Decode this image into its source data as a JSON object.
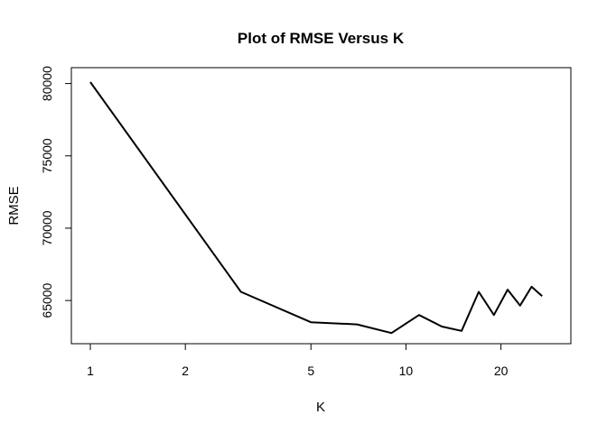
{
  "chart_data": {
    "type": "line",
    "title": "Plot of RMSE Versus K",
    "xlabel": "K",
    "ylabel": "RMSE",
    "x_scale": "log",
    "xlim": [
      1,
      29
    ],
    "ylim": [
      62700,
      80100
    ],
    "grid": false,
    "legend": "none",
    "line_color": "#000000",
    "x_ticks": [
      1,
      2,
      5,
      10,
      20
    ],
    "x_tick_labels": [
      "1",
      "2",
      "5",
      "10",
      "20"
    ],
    "y_ticks": [
      65000,
      70000,
      75000,
      80000
    ],
    "y_tick_labels": [
      "65000",
      "70000",
      "75000",
      "80000"
    ],
    "x": [
      1,
      3,
      5,
      7,
      9,
      11,
      13,
      15,
      17,
      19,
      21,
      23,
      25,
      27
    ],
    "y": [
      80100,
      65600,
      63500,
      63350,
      62750,
      64000,
      63200,
      62900,
      65600,
      64000,
      65750,
      64650,
      65950,
      65300
    ]
  }
}
